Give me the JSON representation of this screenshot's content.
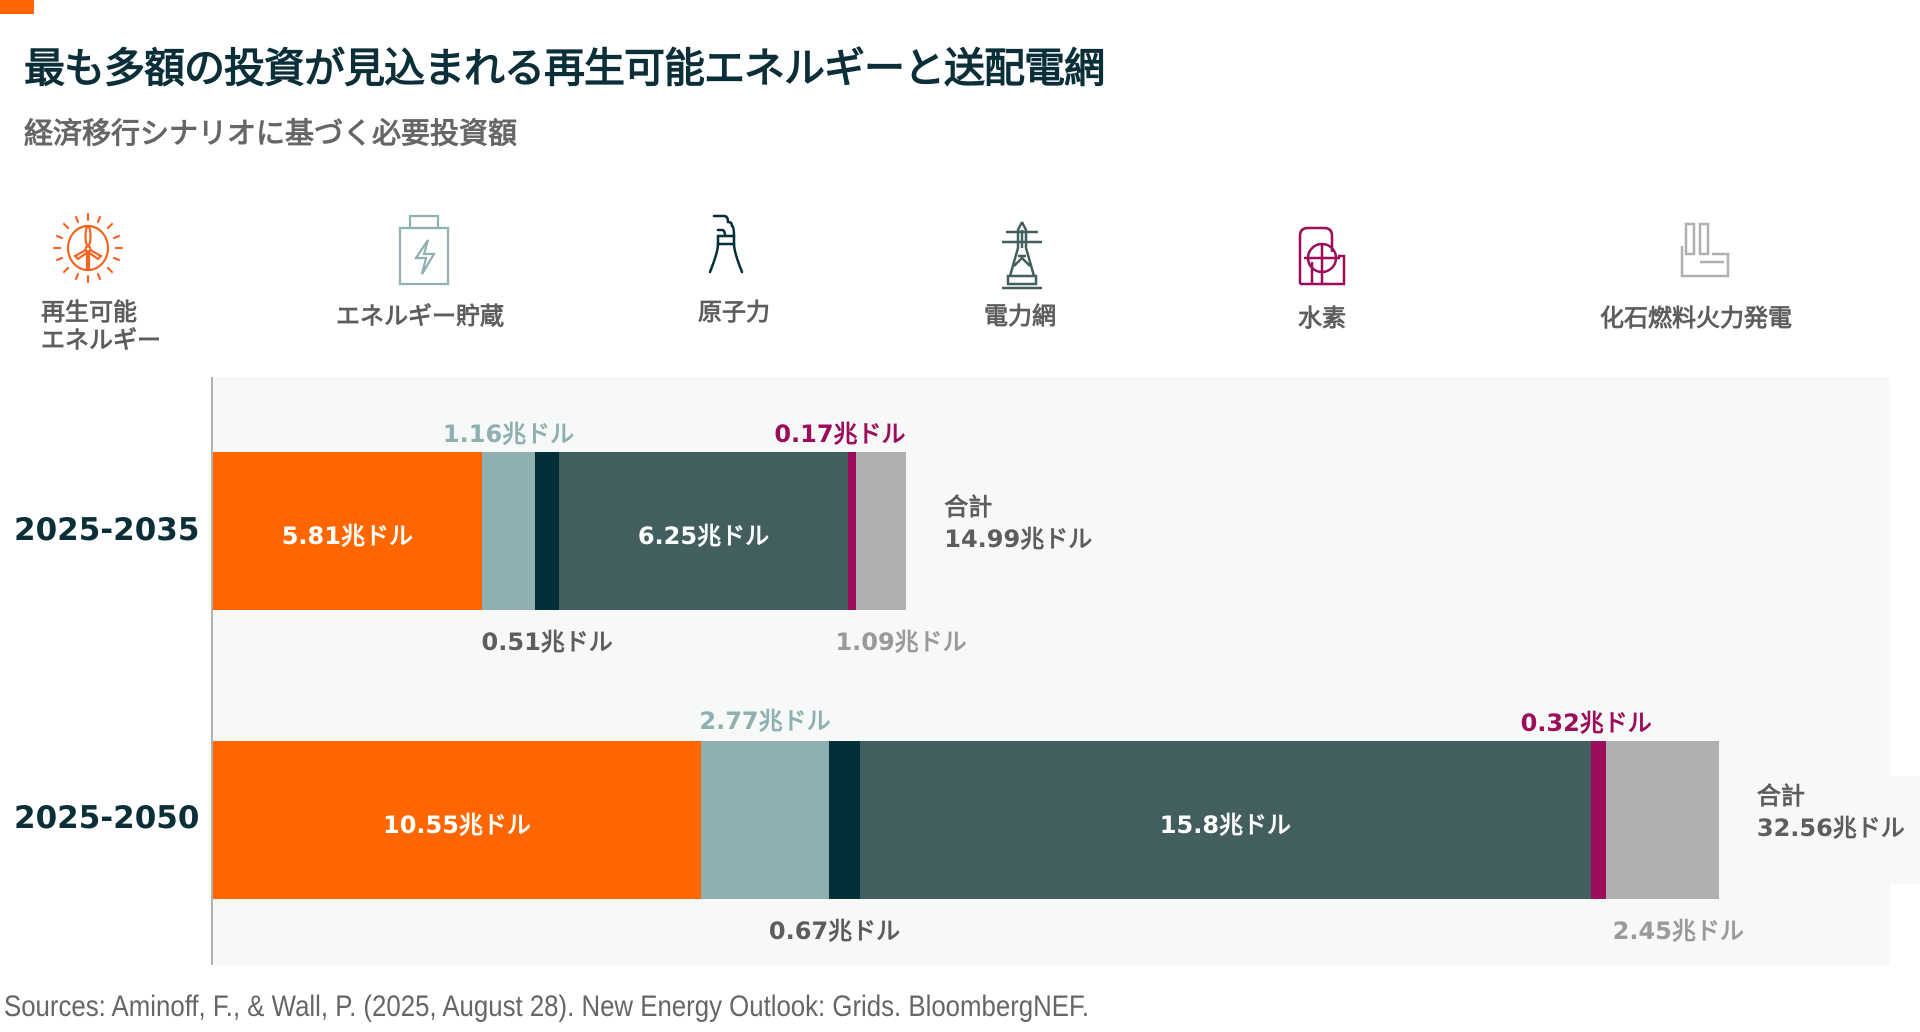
{
  "header": {
    "title": "最も多額の投資が見込まれる再生可能エネルギーと送配電網",
    "subtitle": "経済移行シナリオに基づく必要投資額"
  },
  "legend": [
    {
      "key": "renewables",
      "icon": "wind-turbine-sun-icon",
      "label_lines": [
        "再生可能",
        "エネルギー"
      ],
      "color": "#ff6600"
    },
    {
      "key": "storage",
      "icon": "battery-icon",
      "label_lines": [
        "エネルギー貯蔵"
      ],
      "color": "#8fb0b1"
    },
    {
      "key": "nuclear",
      "icon": "cooling-tower-icon",
      "label_lines": [
        "原子力"
      ],
      "color": "#022f38"
    },
    {
      "key": "grid",
      "icon": "power-pylon-icon",
      "label_lines": [
        "電力網"
      ],
      "color": "#425e5f"
    },
    {
      "key": "hydrogen",
      "icon": "hydrogen-tank-icon",
      "label_lines": [
        "水素"
      ],
      "color": "#9b0d5b"
    },
    {
      "key": "fossil",
      "icon": "fossil-plant-icon",
      "label_lines": [
        "化石燃料火力発電"
      ],
      "color": "#b0b0b0"
    }
  ],
  "chart_data": {
    "type": "bar",
    "orientation": "horizontal",
    "stacked": true,
    "title": "最も多額の投資が見込まれる再生可能エネルギーと送配電網",
    "subtitle": "経済移行シナリオに基づく必要投資額",
    "unit": "兆ドル",
    "unit_suffix": "兆ドル",
    "categories": [
      "2025-2035",
      "2025-2050"
    ],
    "series": [
      {
        "name": "再生可能エネルギー",
        "color": "#ff6600",
        "values": [
          5.81,
          10.55
        ],
        "labels": [
          "5.81兆ドル",
          "10.55兆ドル"
        ],
        "label_position": "inside",
        "label_color": "#ffffff"
      },
      {
        "name": "エネルギー貯蔵",
        "color": "#8fb0b1",
        "values": [
          1.16,
          2.77
        ],
        "labels": [
          "1.16兆ドル",
          "2.77兆ドル"
        ],
        "label_position": "above",
        "label_color": "#8fb0b1"
      },
      {
        "name": "原子力",
        "color": "#022f38",
        "values": [
          0.51,
          0.67
        ],
        "labels": [
          "0.51兆ドル",
          "0.67兆ドル"
        ],
        "label_position": "below",
        "label_color": "#5d5d5d"
      },
      {
        "name": "電力網",
        "color": "#425e5f",
        "values": [
          6.25,
          15.8
        ],
        "labels": [
          "6.25兆ドル",
          "15.8兆ドル"
        ],
        "label_position": "inside",
        "label_color": "#ffffff"
      },
      {
        "name": "水素",
        "color": "#9b0d5b",
        "values": [
          0.17,
          0.32
        ],
        "labels": [
          "0.17兆ドル",
          "0.32兆ドル"
        ],
        "label_position": "above",
        "label_color": "#9b0d5b"
      },
      {
        "name": "化石燃料火力発電",
        "color": "#b0b0b0",
        "values": [
          1.09,
          2.45
        ],
        "labels": [
          "1.09兆ドル",
          "2.45兆ドル"
        ],
        "label_position": "below",
        "label_color": "#9a9a9a"
      }
    ],
    "totals": [
      {
        "label": "合計",
        "value": 14.99,
        "text": "14.99兆ドル"
      },
      {
        "label": "合計",
        "value": 32.56,
        "text": "32.56兆ドル"
      }
    ],
    "xlim": [
      0,
      36
    ],
    "grid": false,
    "legend": "top"
  },
  "footer": {
    "source": "Sources: Aminoff, F., & Wall, P. (2025, August 28). New Energy Outlook: Grids. BloombergNEF."
  }
}
